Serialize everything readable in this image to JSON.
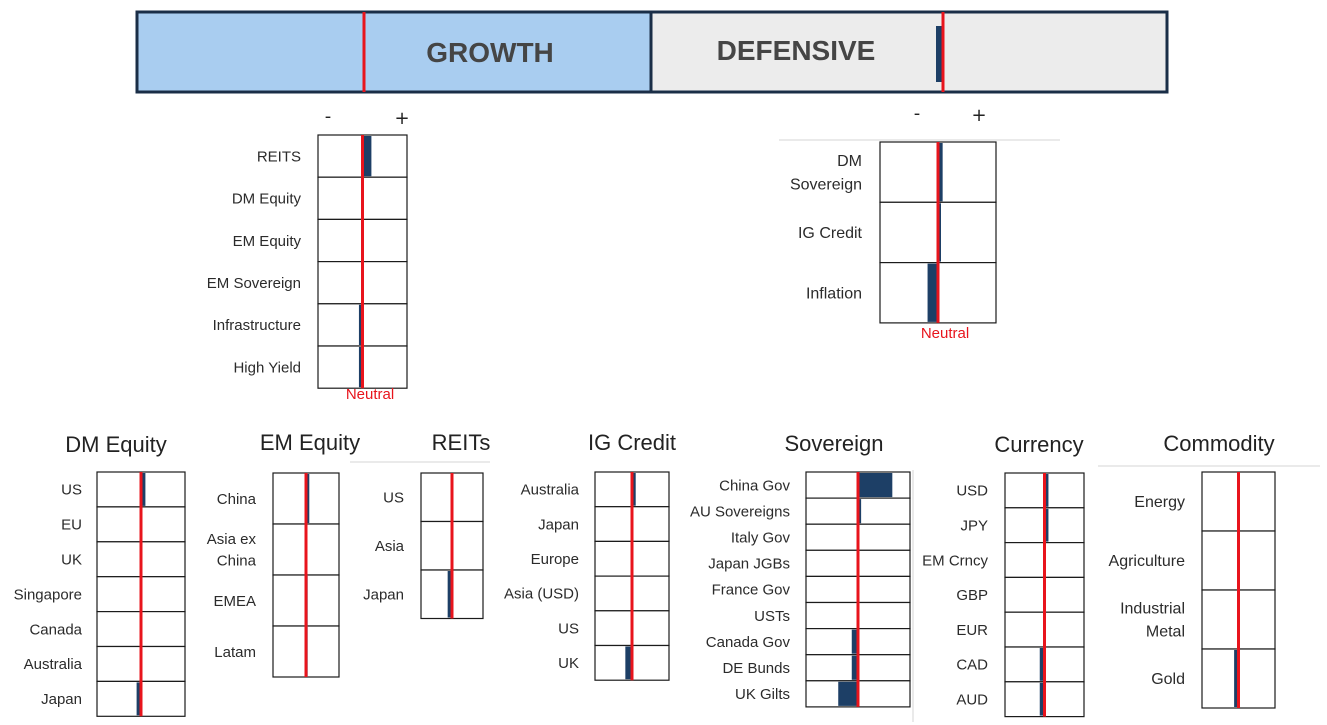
{
  "header": {
    "growth_label": "GROWTH",
    "defensive_label": "DEFENSIVE"
  },
  "top_scale": {
    "minus": "-",
    "plus": "+"
  },
  "neutral_label": "Neutral",
  "colors": {
    "growth_fill": "#a9cdf0",
    "defensive_fill": "#ececec",
    "border": "#1a2e47",
    "bar": "#1d3f66",
    "neutral_line": "#e8141c",
    "text": "#2b2b2b",
    "header_text": "#454545"
  },
  "chart_data": [
    {
      "type": "bar",
      "title": "",
      "subtitle": "Growth",
      "orientation": "horizontal",
      "categories": [
        "REITS",
        "DM Equity",
        "EM Equity",
        "EM Sovereign",
        "Infrastructure",
        "High Yield"
      ],
      "values": [
        0.1,
        0,
        0,
        0,
        -0.04,
        -0.04
      ],
      "xlim": [
        -0.5,
        0.5
      ],
      "neutral": 0,
      "legend": "none"
    },
    {
      "type": "bar",
      "title": "",
      "subtitle": "Defensive",
      "orientation": "horizontal",
      "categories": [
        "DM\nSovereign",
        "IG Credit",
        "Inflation"
      ],
      "values": [
        0.04,
        0.02,
        -0.09
      ],
      "xlim": [
        -0.5,
        0.5
      ],
      "neutral": 0,
      "legend": "none"
    },
    {
      "type": "bar",
      "title": "DM Equity",
      "orientation": "horizontal",
      "categories": [
        "US",
        "EU",
        "UK",
        "Singapore",
        "Canada",
        "Australia",
        "Japan"
      ],
      "values": [
        0.05,
        0,
        0,
        0,
        0,
        0,
        -0.05
      ],
      "xlim": [
        -0.5,
        0.5
      ],
      "neutral": 0
    },
    {
      "type": "bar",
      "title": "EM Equity",
      "orientation": "horizontal",
      "categories": [
        "China",
        "Asia ex\nChina",
        "EMEA",
        "Latam"
      ],
      "values": [
        0.05,
        0,
        -0.02,
        -0.02
      ],
      "xlim": [
        -0.5,
        0.5
      ],
      "neutral": 0
    },
    {
      "type": "bar",
      "title": "REITs",
      "orientation": "horizontal",
      "categories": [
        "US",
        "Asia",
        "Japan"
      ],
      "values": [
        0,
        0,
        -0.07
      ],
      "xlim": [
        -0.5,
        0.5
      ],
      "neutral": 0
    },
    {
      "type": "bar",
      "title": "IG Credit",
      "orientation": "horizontal",
      "categories": [
        "Australia",
        "Japan",
        "Europe",
        "Asia (USD)",
        "US",
        "UK"
      ],
      "values": [
        0.05,
        0,
        0,
        0,
        0,
        -0.09
      ],
      "xlim": [
        -0.5,
        0.5
      ],
      "neutral": 0
    },
    {
      "type": "bar",
      "title": "Sovereign",
      "orientation": "horizontal",
      "categories": [
        "China Gov",
        "AU Sovereigns",
        "Italy Gov",
        "Japan JGBs",
        "France Gov",
        "USTs",
        "Canada Gov",
        "DE Bunds",
        "UK Gilts"
      ],
      "values": [
        0.33,
        0.03,
        0,
        0,
        0,
        0,
        -0.06,
        -0.06,
        -0.19
      ],
      "xlim": [
        -0.5,
        0.5
      ],
      "neutral": 0
    },
    {
      "type": "bar",
      "title": "Currency",
      "orientation": "horizontal",
      "categories": [
        "USD",
        "JPY",
        "EM Crncy",
        "GBP",
        "EUR",
        "CAD",
        "AUD"
      ],
      "values": [
        0.05,
        0.05,
        0,
        0,
        0,
        -0.06,
        -0.06
      ],
      "xlim": [
        -0.5,
        0.5
      ],
      "neutral": 0
    },
    {
      "type": "bar",
      "title": "Commodity",
      "orientation": "horizontal",
      "categories": [
        "Energy",
        "Agriculture",
        "Industrial\nMetal",
        "Gold"
      ],
      "values": [
        0,
        0,
        0,
        -0.06
      ],
      "xlim": [
        -0.5,
        0.5
      ],
      "neutral": 0
    }
  ]
}
